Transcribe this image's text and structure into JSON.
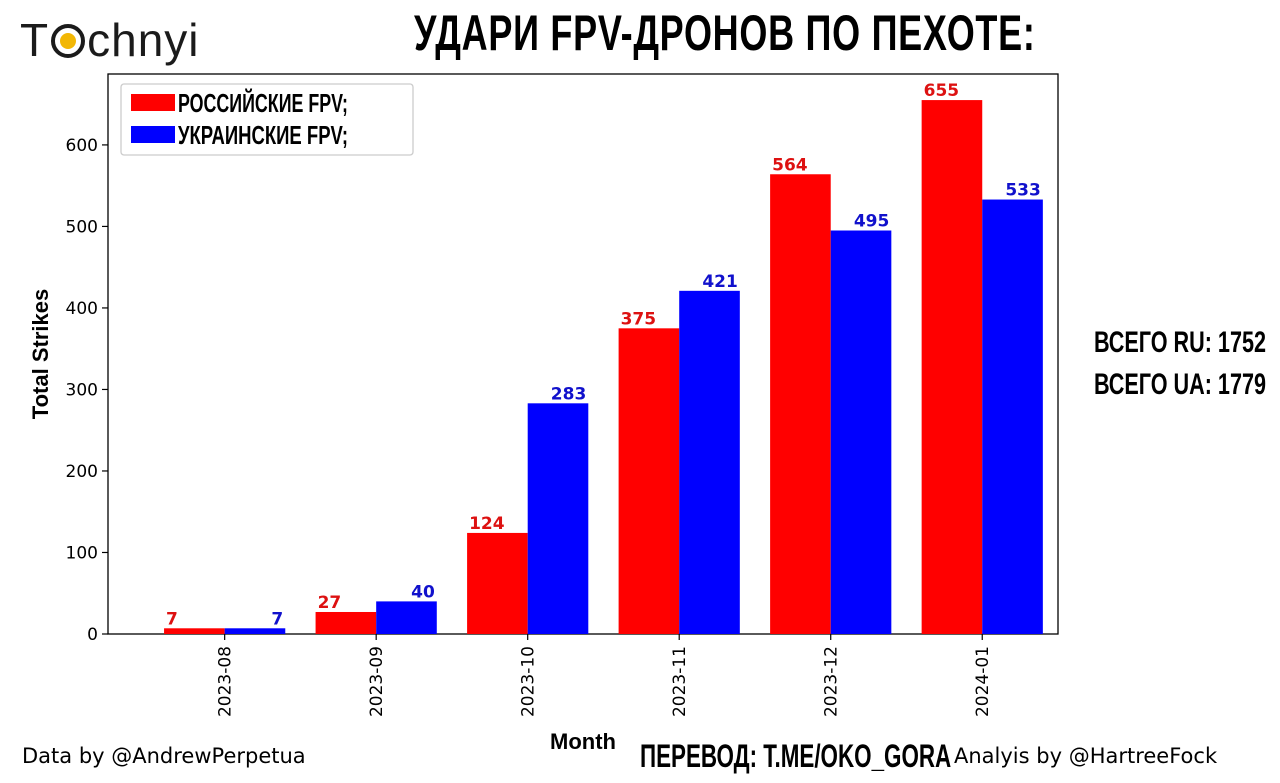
{
  "brand": {
    "logo_prefix": "T",
    "logo_suffix": "chnyi"
  },
  "colors": {
    "russia": "#ff0000",
    "ukraine": "#0000ff",
    "ru_label": "#dd1111",
    "ua_label": "#1111cc"
  },
  "chart_data": {
    "type": "bar",
    "title": "УДАРИ FPV-ДРОНОВ ПО ПЕХОТЕ:",
    "xlabel": "Month",
    "ylabel": "Total Strikes",
    "categories": [
      "2023-08",
      "2023-09",
      "2023-10",
      "2023-11",
      "2023-12",
      "2024-01"
    ],
    "series": [
      {
        "name": "РОССИЙСКИЕ FPV;",
        "values": [
          7,
          27,
          124,
          375,
          564,
          655
        ]
      },
      {
        "name": "УКРАИНСКИЕ FPV;",
        "values": [
          7,
          40,
          283,
          421,
          495,
          533
        ]
      }
    ],
    "yticks": [
      0,
      100,
      200,
      300,
      400,
      500,
      600
    ],
    "ylim": [
      0,
      687
    ],
    "legend_position": "top-left",
    "grid": false
  },
  "totals": {
    "ru": "ВСЕГО RU: 1752",
    "ua": "ВСЕГО UA: 1779"
  },
  "footer": {
    "data_credit": "Data by @AndrewPerpetua",
    "translation": "ПЕРЕВОД: T.ME/OKO_GORA",
    "analysis_credit": "Analyis by @HartreeFock"
  }
}
